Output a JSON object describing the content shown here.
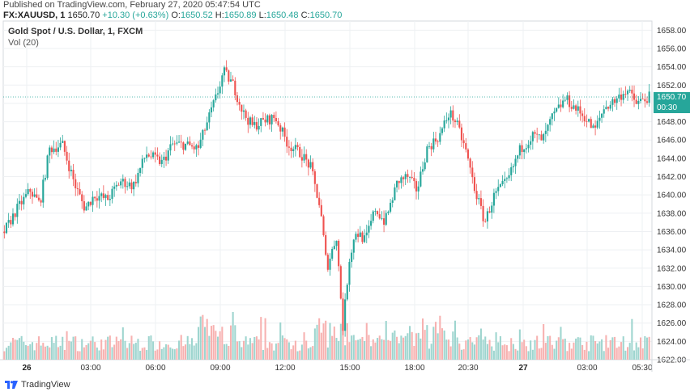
{
  "header": {
    "published": "Published on TradingView.com, February 27, 2020 05:47:54 UTC",
    "symbol": "FX:XAUUSD, 1",
    "last": "1650.70",
    "change": "+10.30 (+0.63%)",
    "o_label": "O:",
    "o_value": "1650.52",
    "h_label": "H:",
    "h_value": "1650.89",
    "l_label": "L:",
    "l_value": "1650.48",
    "c_label": "C:",
    "c_value": "1650.70"
  },
  "title": "Gold Spot / U.S. Dollar, 1, FXCM",
  "volume_label": "Vol (20)",
  "price_label": "1650.70",
  "countdown_label": "00:30",
  "logo_text": "TradingView",
  "colors": {
    "up": "#26a69a",
    "down": "#ef5350",
    "up_volume": "#9ed5cf",
    "down_volume": "#f7b1b0",
    "grid": "#eef0f3",
    "price_line": "#26a69a"
  },
  "chart_data": {
    "type": "candlestick",
    "title": "Gold Spot / U.S. Dollar, 1, FXCM",
    "ylim": [
      1622,
      1659
    ],
    "y_ticks": [
      "1658.00",
      "1656.00",
      "1654.00",
      "1652.00",
      "1650.00",
      "1648.00",
      "1646.00",
      "1644.00",
      "1642.00",
      "1640.00",
      "1638.00",
      "1636.00",
      "1634.00",
      "1632.00",
      "1630.00",
      "1628.00",
      "1626.00",
      "1624.00",
      "1622.00"
    ],
    "x_ticks": [
      "26",
      "03:00",
      "06:00",
      "09:00",
      "12:00",
      "15:00",
      "18:00",
      "20:30",
      "27",
      "03:00",
      "05:30"
    ],
    "x_ticks_bold": [
      "26",
      "27"
    ],
    "approx_close_path": [
      {
        "t": 0,
        "p": 1636.0
      },
      {
        "t": 0.02,
        "p": 1638.5
      },
      {
        "t": 0.04,
        "p": 1640.5
      },
      {
        "t": 0.055,
        "p": 1639.0
      },
      {
        "t": 0.07,
        "p": 1645.0
      },
      {
        "t": 0.09,
        "p": 1645.5
      },
      {
        "t": 0.11,
        "p": 1641.0
      },
      {
        "t": 0.125,
        "p": 1638.5
      },
      {
        "t": 0.14,
        "p": 1640.0
      },
      {
        "t": 0.16,
        "p": 1639.5
      },
      {
        "t": 0.18,
        "p": 1641.5
      },
      {
        "t": 0.2,
        "p": 1641.0
      },
      {
        "t": 0.22,
        "p": 1644.5
      },
      {
        "t": 0.245,
        "p": 1643.5
      },
      {
        "t": 0.26,
        "p": 1645.5
      },
      {
        "t": 0.28,
        "p": 1645.5
      },
      {
        "t": 0.3,
        "p": 1645.0
      },
      {
        "t": 0.315,
        "p": 1648.0
      },
      {
        "t": 0.33,
        "p": 1651.0
      },
      {
        "t": 0.34,
        "p": 1653.5
      },
      {
        "t": 0.355,
        "p": 1652.0
      },
      {
        "t": 0.37,
        "p": 1649.0
      },
      {
        "t": 0.385,
        "p": 1647.5
      },
      {
        "t": 0.4,
        "p": 1648.0
      },
      {
        "t": 0.42,
        "p": 1648.5
      },
      {
        "t": 0.44,
        "p": 1645.5
      },
      {
        "t": 0.46,
        "p": 1644.5
      },
      {
        "t": 0.475,
        "p": 1643.0
      },
      {
        "t": 0.49,
        "p": 1638.5
      },
      {
        "t": 0.5,
        "p": 1632.0
      },
      {
        "t": 0.515,
        "p": 1635.5
      },
      {
        "t": 0.525,
        "p": 1625.5
      },
      {
        "t": 0.535,
        "p": 1633.0
      },
      {
        "t": 0.545,
        "p": 1636.0
      },
      {
        "t": 0.56,
        "p": 1635.0
      },
      {
        "t": 0.575,
        "p": 1638.5
      },
      {
        "t": 0.59,
        "p": 1637.0
      },
      {
        "t": 0.61,
        "p": 1641.5
      },
      {
        "t": 0.625,
        "p": 1642.0
      },
      {
        "t": 0.64,
        "p": 1640.5
      },
      {
        "t": 0.655,
        "p": 1645.0
      },
      {
        "t": 0.675,
        "p": 1646.5
      },
      {
        "t": 0.69,
        "p": 1649.0
      },
      {
        "t": 0.7,
        "p": 1648.0
      },
      {
        "t": 0.715,
        "p": 1645.0
      },
      {
        "t": 0.73,
        "p": 1640.5
      },
      {
        "t": 0.745,
        "p": 1637.0
      },
      {
        "t": 0.76,
        "p": 1640.0
      },
      {
        "t": 0.78,
        "p": 1641.5
      },
      {
        "t": 0.8,
        "p": 1645.0
      },
      {
        "t": 0.82,
        "p": 1646.5
      },
      {
        "t": 0.835,
        "p": 1646.0
      },
      {
        "t": 0.85,
        "p": 1648.5
      },
      {
        "t": 0.87,
        "p": 1650.5
      },
      {
        "t": 0.885,
        "p": 1649.5
      },
      {
        "t": 0.9,
        "p": 1648.5
      },
      {
        "t": 0.915,
        "p": 1647.0
      },
      {
        "t": 0.93,
        "p": 1649.5
      },
      {
        "t": 0.95,
        "p": 1650.5
      },
      {
        "t": 0.965,
        "p": 1651.5
      },
      {
        "t": 0.98,
        "p": 1650.0
      },
      {
        "t": 1.0,
        "p": 1650.7
      }
    ],
    "volume_note": "per-candle volume bars along the bottom, relative scale 0-1",
    "last_price": 1650.7
  }
}
